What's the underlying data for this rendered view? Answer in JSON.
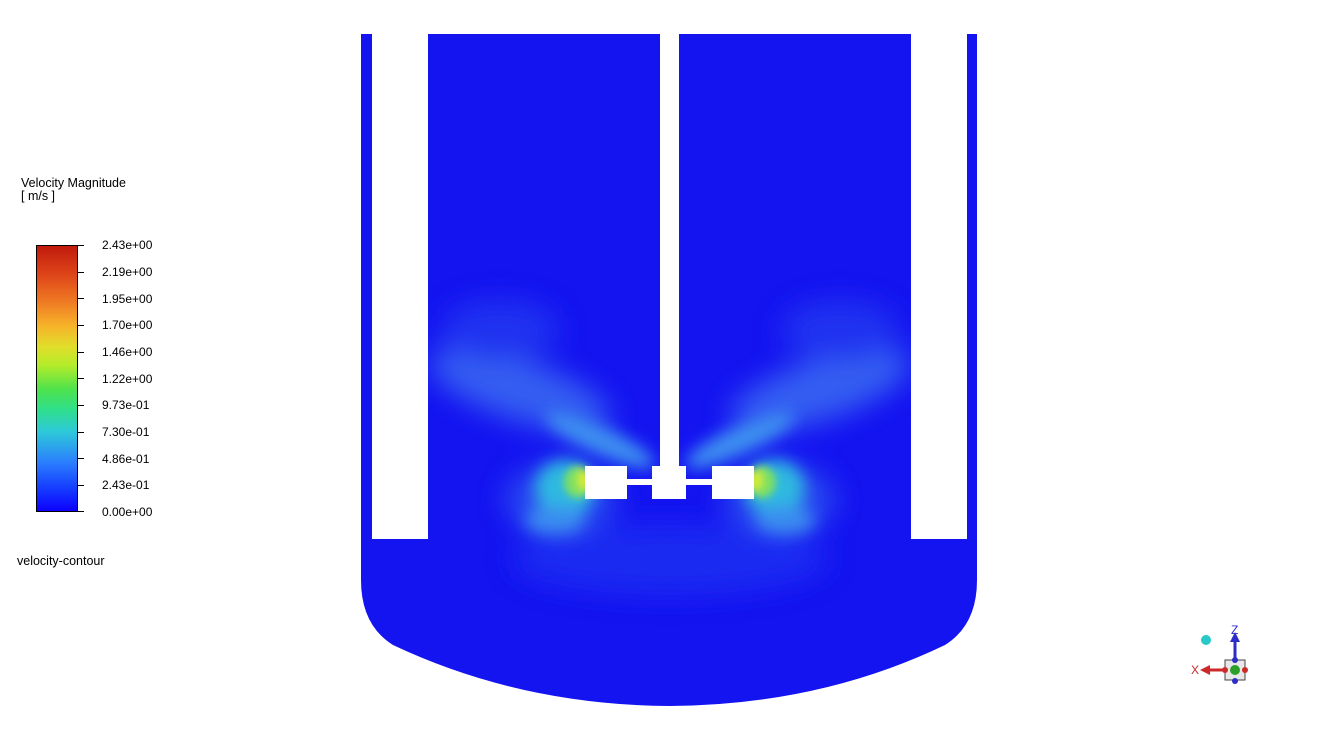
{
  "legend": {
    "title": "Velocity Magnitude",
    "units": "[ m/s ]",
    "max_color": "#c01a0c",
    "min_color": "#0d00ff",
    "ticks": [
      "2.43e+00",
      "2.19e+00",
      "1.95e+00",
      "1.70e+00",
      "1.46e+00",
      "1.22e+00",
      "9.73e-01",
      "7.30e-01",
      "4.86e-01",
      "2.43e-01",
      "0.00e+00"
    ]
  },
  "contour_name": "velocity-contour",
  "triad": {
    "z_label": "Z",
    "x_label": "X"
  },
  "colors": {
    "fluid": "#1414f0",
    "background": "#ffffff"
  }
}
